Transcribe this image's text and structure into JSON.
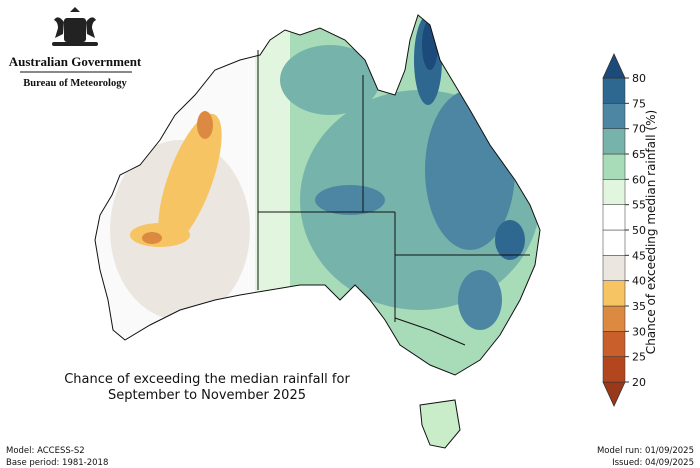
{
  "header": {
    "agency": "Australian Government",
    "bureau": "Bureau of Meteorology"
  },
  "map": {
    "title_lines": [
      "Chance of exceeding the median rainfall for",
      "September to November 2025"
    ]
  },
  "colorbar": {
    "label": "Chance of exceeding median rainfall (%)",
    "ticks": [
      20,
      25,
      30,
      35,
      40,
      45,
      50,
      55,
      60,
      65,
      70,
      75,
      80
    ],
    "colors": [
      "#99391a",
      "#b4461f",
      "#c9602c",
      "#dc8a42",
      "#f6c462",
      "#ece6e0",
      "#ffffff",
      "#ffffff",
      "#e2f6df",
      "#a8dcb8",
      "#76b3aa",
      "#4d86a3",
      "#2e6790",
      "#1c4a7a"
    ]
  },
  "footer": {
    "model": "Model: ACCESS-S2",
    "base_period": "Base period: 1981-2018",
    "model_run": "Model run: 01/09/2025",
    "issued": "Issued: 04/09/2025"
  }
}
